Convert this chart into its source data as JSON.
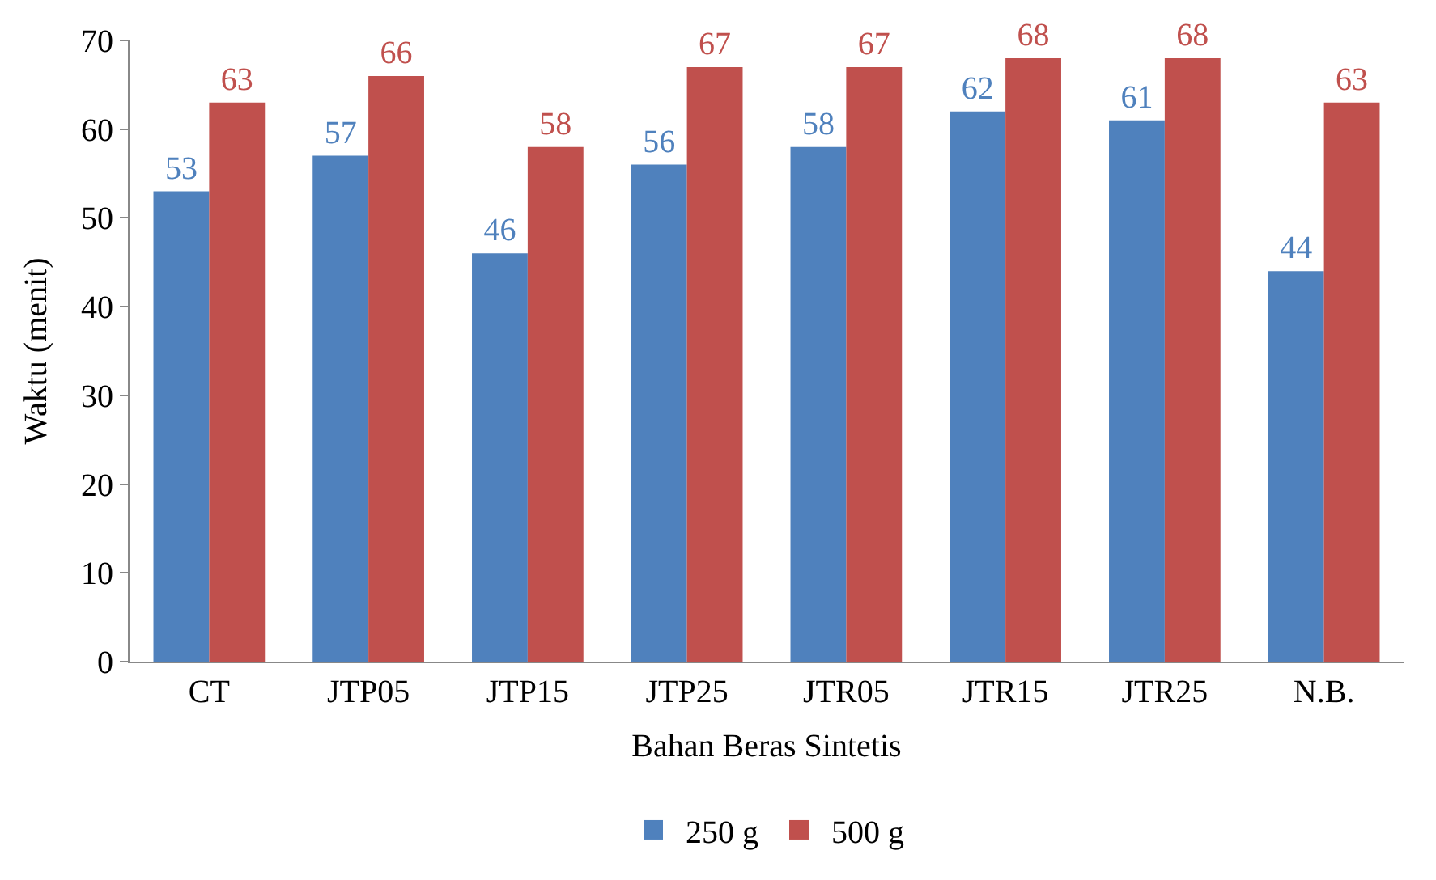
{
  "chart_data": {
    "type": "bar",
    "xlabel": "Bahan Beras Sintetis",
    "ylabel": "Waktu (menit)",
    "categories": [
      "CT",
      "JTP05",
      "JTP15",
      "JTP25",
      "JTR05",
      "JTR15",
      "JTR25",
      "N.B."
    ],
    "series": [
      {
        "name": "250 g",
        "color": "#4f81bd",
        "values": [
          53,
          57,
          46,
          56,
          58,
          62,
          61,
          44
        ]
      },
      {
        "name": "500 g",
        "color": "#c0504d",
        "values": [
          63,
          66,
          58,
          67,
          67,
          68,
          68,
          63
        ]
      }
    ],
    "ylim": [
      0,
      70
    ],
    "yticks": [
      0,
      10,
      20,
      30,
      40,
      50,
      60,
      70
    ],
    "grid": false,
    "legend": "bottom",
    "data_labels": true
  }
}
